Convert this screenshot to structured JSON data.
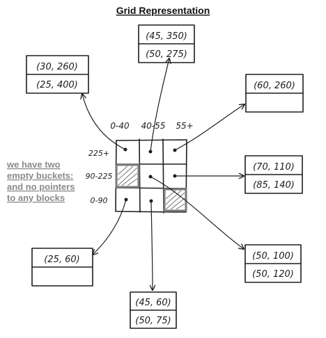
{
  "title": "Grid Representation",
  "note": {
    "lines": [
      "we have two",
      "empty buckets:",
      "and no pointers",
      "to any blocks"
    ]
  },
  "grid": {
    "column_labels": [
      "0-40",
      "40-55",
      "55+"
    ],
    "row_labels": [
      "225+",
      "90-225",
      "0-90"
    ]
  },
  "blocks": [
    {
      "id": "top-center",
      "entries": [
        "(45, 350)",
        "(50, 275)"
      ]
    },
    {
      "id": "top-left",
      "entries": [
        "(30, 260)",
        "(25, 400)"
      ]
    },
    {
      "id": "top-right",
      "entries": [
        "(60, 260)",
        ""
      ]
    },
    {
      "id": "middle-right",
      "entries": [
        "(70, 110)",
        "(85, 140)"
      ]
    },
    {
      "id": "bottom-right",
      "entries": [
        "(50, 100)",
        "(50, 120)"
      ]
    },
    {
      "id": "bottom-center",
      "entries": [
        "(45, 60)",
        "(50, 75)"
      ]
    },
    {
      "id": "bottom-left",
      "entries": [
        "(25, 60)",
        ""
      ]
    }
  ]
}
